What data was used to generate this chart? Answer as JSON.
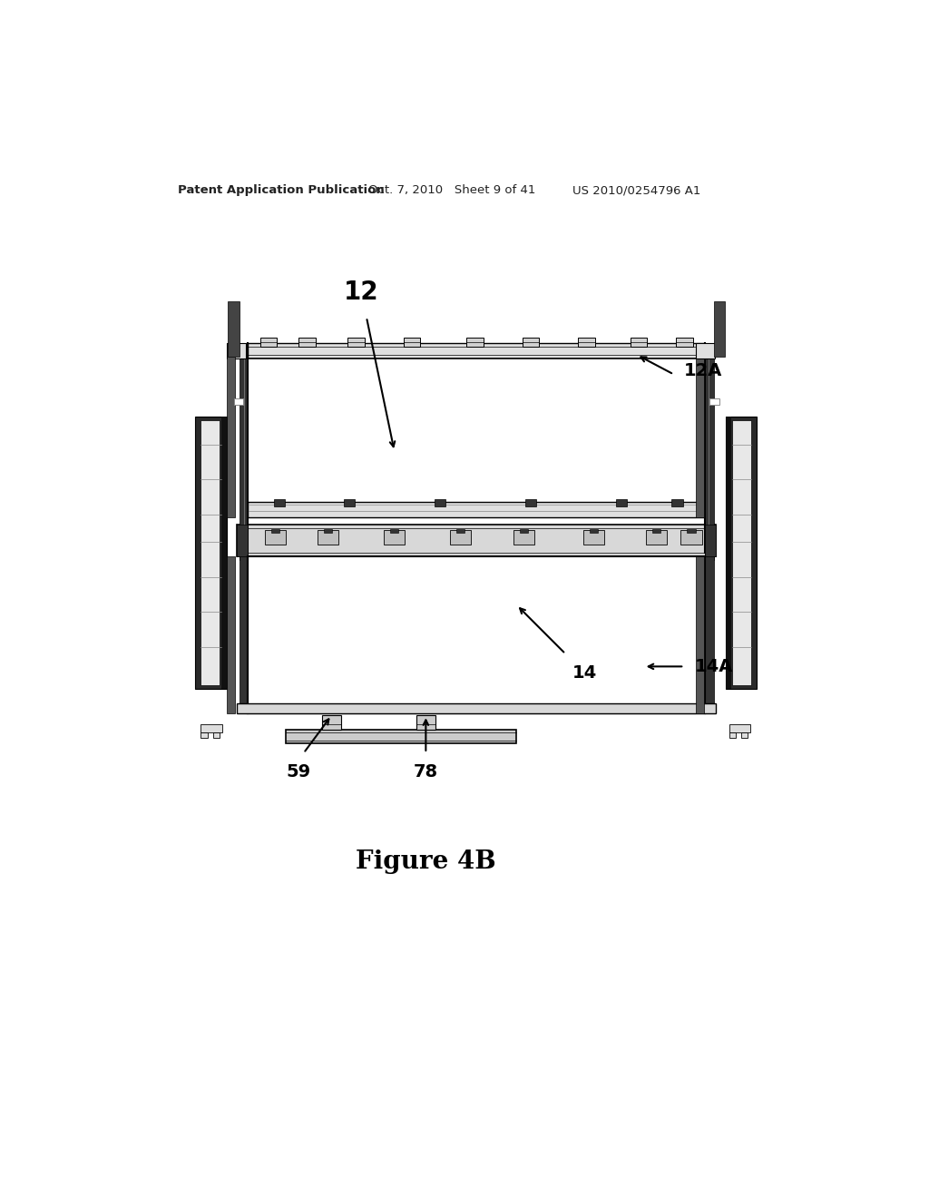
{
  "title": "Figure 4B",
  "header_left": "Patent Application Publication",
  "header_mid": "Oct. 7, 2010   Sheet 9 of 41",
  "header_right": "US 2010/0254796 A1",
  "bg_color": "#ffffff",
  "line_color": "#000000",
  "black": "#1a1a1a",
  "dark_gray": "#444444",
  "mid_gray": "#888888",
  "light_gray": "#cccccc",
  "very_light": "#e8e8e8"
}
